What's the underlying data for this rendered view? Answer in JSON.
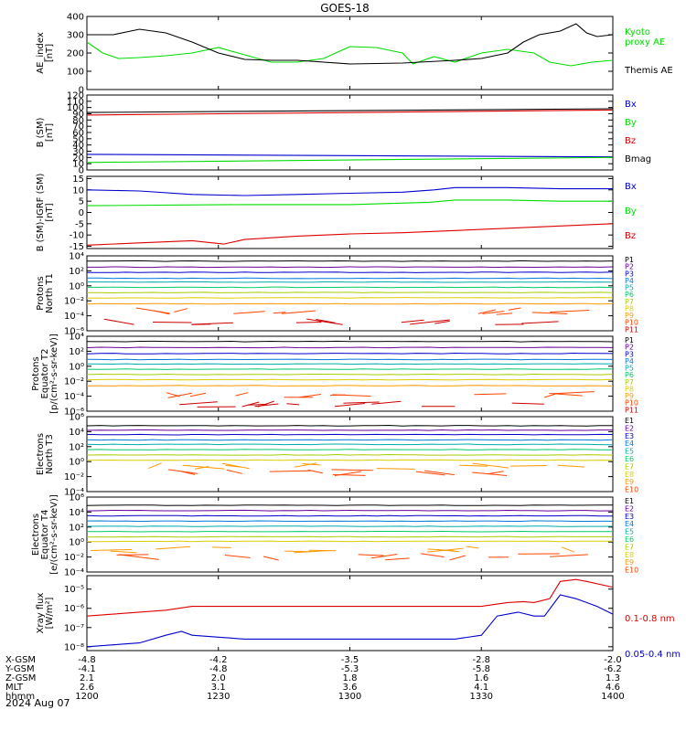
{
  "title": "GOES-18",
  "date_label": "2024 Aug 07",
  "colors": {
    "black": "#000000",
    "green": "#00dd00",
    "red": "#dd0000",
    "blue": "#0000cc",
    "P": [
      "#000000",
      "#660099",
      "#0000cc",
      "#0077dd",
      "#00aaaa",
      "#00cc66",
      "#aacc00",
      "#ddcc00",
      "#ff9900",
      "#ff4400",
      "#cc0000"
    ],
    "E": [
      "#000000",
      "#660099",
      "#0000cc",
      "#0077dd",
      "#00aaaa",
      "#00cc66",
      "#aacc00",
      "#ddcc00",
      "#ff9900",
      "#ff4400"
    ]
  },
  "chart_data": [
    {
      "type": "line",
      "id": "ae",
      "ylabel": [
        "AE_index",
        "[nT]"
      ],
      "ylim": [
        0,
        400
      ],
      "yticks": [
        0,
        100,
        200,
        300,
        400
      ],
      "ytick_labels": [
        "0",
        "100",
        "200",
        "300",
        "400"
      ],
      "series": [
        {
          "name": "Kyoto proxy AE",
          "legend": [
            "Kyoto",
            "proxy AE"
          ],
          "color": "green",
          "x": [
            0,
            0.03,
            0.06,
            0.1,
            0.15,
            0.2,
            0.25,
            0.3,
            0.35,
            0.4,
            0.45,
            0.5,
            0.55,
            0.6,
            0.62,
            0.66,
            0.7,
            0.75,
            0.8,
            0.85,
            0.88,
            0.92,
            0.96,
            1
          ],
          "y": [
            260,
            200,
            170,
            175,
            185,
            200,
            230,
            190,
            150,
            150,
            170,
            235,
            230,
            200,
            140,
            180,
            150,
            200,
            220,
            200,
            150,
            130,
            150,
            160
          ]
        },
        {
          "name": "Themis AE",
          "legend": [
            "Themis AE"
          ],
          "color": "black",
          "x": [
            0,
            0.05,
            0.1,
            0.15,
            0.2,
            0.25,
            0.3,
            0.35,
            0.4,
            0.5,
            0.6,
            0.7,
            0.75,
            0.8,
            0.83,
            0.86,
            0.9,
            0.93,
            0.95,
            0.97,
            1
          ],
          "y": [
            300,
            300,
            330,
            310,
            260,
            200,
            165,
            160,
            160,
            140,
            145,
            160,
            170,
            200,
            260,
            300,
            320,
            360,
            310,
            290,
            300
          ]
        }
      ]
    },
    {
      "type": "line",
      "id": "bsm",
      "ylabel": [
        "B (SM)",
        "[nT]"
      ],
      "ylim": [
        0,
        120
      ],
      "yticks": [
        0,
        10,
        20,
        30,
        40,
        50,
        60,
        70,
        80,
        90,
        100,
        110,
        120
      ],
      "ytick_labels": [
        "0",
        "10",
        "20",
        "30",
        "40",
        "50",
        "60",
        "70",
        "80",
        "90",
        "100",
        "110",
        "120"
      ],
      "series": [
        {
          "name": "Bx",
          "color": "blue",
          "x": [
            0,
            1
          ],
          "y": [
            25,
            21
          ]
        },
        {
          "name": "By",
          "color": "green",
          "x": [
            0,
            1
          ],
          "y": [
            12,
            20
          ]
        },
        {
          "name": "Bz",
          "color": "red",
          "x": [
            0,
            1
          ],
          "y": [
            88,
            96
          ]
        },
        {
          "name": "Bmag",
          "color": "black",
          "x": [
            0,
            1
          ],
          "y": [
            92,
            98
          ]
        }
      ]
    },
    {
      "type": "line",
      "id": "bigrf",
      "ylabel": [
        "B (SM)-IGRF (SM)",
        "[nT]"
      ],
      "ylim": [
        -16,
        16
      ],
      "yticks": [
        -15,
        -10,
        -5,
        0,
        5,
        10,
        15
      ],
      "ytick_labels": [
        "-15",
        "-10",
        "-5",
        "0",
        "5",
        "10",
        "15"
      ],
      "series": [
        {
          "name": "Bx",
          "color": "blue",
          "x": [
            0,
            0.1,
            0.2,
            0.3,
            0.4,
            0.5,
            0.6,
            0.66,
            0.7,
            0.8,
            0.9,
            1
          ],
          "y": [
            10,
            9.5,
            8,
            7.5,
            8,
            8.5,
            9,
            10,
            11,
            11,
            10.5,
            10.5
          ]
        },
        {
          "name": "By",
          "color": "green",
          "x": [
            0,
            0.3,
            0.5,
            0.65,
            0.7,
            0.8,
            0.9,
            1
          ],
          "y": [
            3,
            3.5,
            3.5,
            4.5,
            5.5,
            5.5,
            5,
            5
          ]
        },
        {
          "name": "Bz",
          "color": "red",
          "x": [
            0,
            0.1,
            0.2,
            0.26,
            0.3,
            0.4,
            0.5,
            0.6,
            0.7,
            0.8,
            0.9,
            1
          ],
          "y": [
            -14.5,
            -13.5,
            -12.5,
            -14,
            -12,
            -10.5,
            -9.5,
            -9,
            -8,
            -7,
            -6,
            -5
          ]
        }
      ]
    },
    {
      "type": "line",
      "id": "pn",
      "ylabel": [
        "Protons",
        "North T1"
      ],
      "ylim": [
        -6,
        4
      ],
      "yticks": [
        -6,
        -4,
        -2,
        0,
        2,
        4
      ],
      "ytick_labels": [
        "10⁻⁶",
        "10⁻⁴",
        "10⁻²",
        "10⁰",
        "10²",
        "10⁴"
      ],
      "labels": [
        "P1",
        "P2",
        "P3",
        "P4",
        "P5",
        "P6",
        "P7",
        "P8",
        "P9",
        "P10",
        "P11"
      ],
      "levels": [
        3.3,
        2.5,
        1.8,
        1.0,
        0.5,
        -0.2,
        -0.9,
        -1.6,
        -2.4,
        -3.4,
        -4.8
      ]
    },
    {
      "type": "line",
      "id": "pe",
      "ylabel": [
        "Protons",
        "Equator T2",
        "[p/(cm²-s-sr-keV)]"
      ],
      "ylim": [
        -6,
        4
      ],
      "yticks": [
        -6,
        -4,
        -2,
        0,
        2,
        4
      ],
      "ytick_labels": [
        "10⁻⁶",
        "10⁻⁴",
        "10⁻²",
        "10⁰",
        "10²",
        "10⁴"
      ],
      "labels": [
        "P1",
        "P2",
        "P3",
        "P4",
        "P5",
        "P6",
        "P7",
        "P8",
        "P9",
        "P10",
        "P11"
      ],
      "levels": [
        3.3,
        2.5,
        1.7,
        0.9,
        0.3,
        -0.4,
        -1.1,
        -1.8,
        -2.6,
        -3.8,
        -5.0
      ]
    },
    {
      "type": "line",
      "id": "en",
      "ylabel": [
        "Electrons",
        "North T3"
      ],
      "ylim": [
        -4,
        6
      ],
      "yticks": [
        -4,
        -2,
        0,
        2,
        4,
        6
      ],
      "ytick_labels": [
        "10⁻⁴",
        "10⁻²",
        "10⁰",
        "10²",
        "10⁴",
        "10⁶"
      ],
      "labels": [
        "E1",
        "E2",
        "E3",
        "E4",
        "E5",
        "E6",
        "E7",
        "E8",
        "E9",
        "E10"
      ],
      "levels": [
        4.8,
        4.2,
        3.6,
        2.9,
        2.3,
        1.6,
        0.9,
        0.2,
        -0.6,
        -1.5
      ]
    },
    {
      "type": "line",
      "id": "ee",
      "ylabel": [
        "Electrons",
        "Equator T4",
        "[e/(cm²-s-sr-keV)]"
      ],
      "ylim": [
        -4,
        6
      ],
      "yticks": [
        -4,
        -2,
        0,
        2,
        4,
        6
      ],
      "ytick_labels": [
        "10⁻⁴",
        "10⁻²",
        "10⁰",
        "10²",
        "10⁴",
        "10⁶"
      ],
      "labels": [
        "E1",
        "E2",
        "E3",
        "E4",
        "E5",
        "E6",
        "E7",
        "E8",
        "E9",
        "E10"
      ],
      "levels": [
        4.9,
        4.2,
        3.5,
        2.8,
        2.1,
        1.4,
        0.7,
        0.1,
        -1.0,
        -2.0
      ]
    },
    {
      "type": "line",
      "id": "xray",
      "ylabel": [
        "Xray flux",
        "[W/m²]"
      ],
      "ylim": [
        -8.2,
        -4.3
      ],
      "yticks": [
        -8,
        -7,
        -6,
        -5
      ],
      "ytick_labels": [
        "10⁻⁸",
        "10⁻⁷",
        "10⁻⁶",
        "10⁻⁵"
      ],
      "series": [
        {
          "name": "0.1-0.8 nm",
          "color": "red",
          "x": [
            0,
            0.05,
            0.15,
            0.2,
            0.25,
            0.3,
            0.4,
            0.5,
            0.6,
            0.7,
            0.75,
            0.8,
            0.83,
            0.85,
            0.88,
            0.9,
            0.93,
            0.95,
            1
          ],
          "y": [
            -6.4,
            -6.3,
            -6.1,
            -5.9,
            -5.9,
            -5.9,
            -5.9,
            -5.9,
            -5.9,
            -5.9,
            -5.9,
            -5.7,
            -5.65,
            -5.7,
            -5.5,
            -4.6,
            -4.5,
            -4.6,
            -4.9
          ]
        },
        {
          "name": "0.05-0.4 nm",
          "color": "blue",
          "x": [
            0,
            0.05,
            0.1,
            0.15,
            0.18,
            0.2,
            0.25,
            0.3,
            0.4,
            0.5,
            0.6,
            0.7,
            0.75,
            0.78,
            0.82,
            0.85,
            0.87,
            0.9,
            0.93,
            0.97,
            1
          ],
          "y": [
            -8.0,
            -7.9,
            -7.8,
            -7.4,
            -7.2,
            -7.4,
            -7.5,
            -7.6,
            -7.6,
            -7.6,
            -7.6,
            -7.6,
            -7.4,
            -6.4,
            -6.2,
            -6.4,
            -6.4,
            -5.3,
            -5.5,
            -5.9,
            -6.3
          ]
        }
      ]
    }
  ],
  "x_axis": {
    "rows": [
      {
        "label": "X-GSM",
        "values": [
          "-4.8",
          "-4.2",
          "-3.5",
          "-2.8",
          "-2.0"
        ]
      },
      {
        "label": "Y-GSM",
        "values": [
          "-4.1",
          "-4.8",
          "-5.3",
          "-5.8",
          "-6.2"
        ]
      },
      {
        "label": "Z-GSM",
        "values": [
          "2.1",
          "2.0",
          "1.8",
          "1.6",
          "1.3"
        ]
      },
      {
        "label": "MLT",
        "values": [
          "2.6",
          "3.1",
          "3.6",
          "4.1",
          "4.6"
        ]
      },
      {
        "label": "hhmm",
        "values": [
          "1200",
          "1230",
          "1300",
          "1330",
          "1400"
        ]
      }
    ],
    "tick_fractions": [
      0,
      0.25,
      0.5,
      0.75,
      1
    ]
  }
}
